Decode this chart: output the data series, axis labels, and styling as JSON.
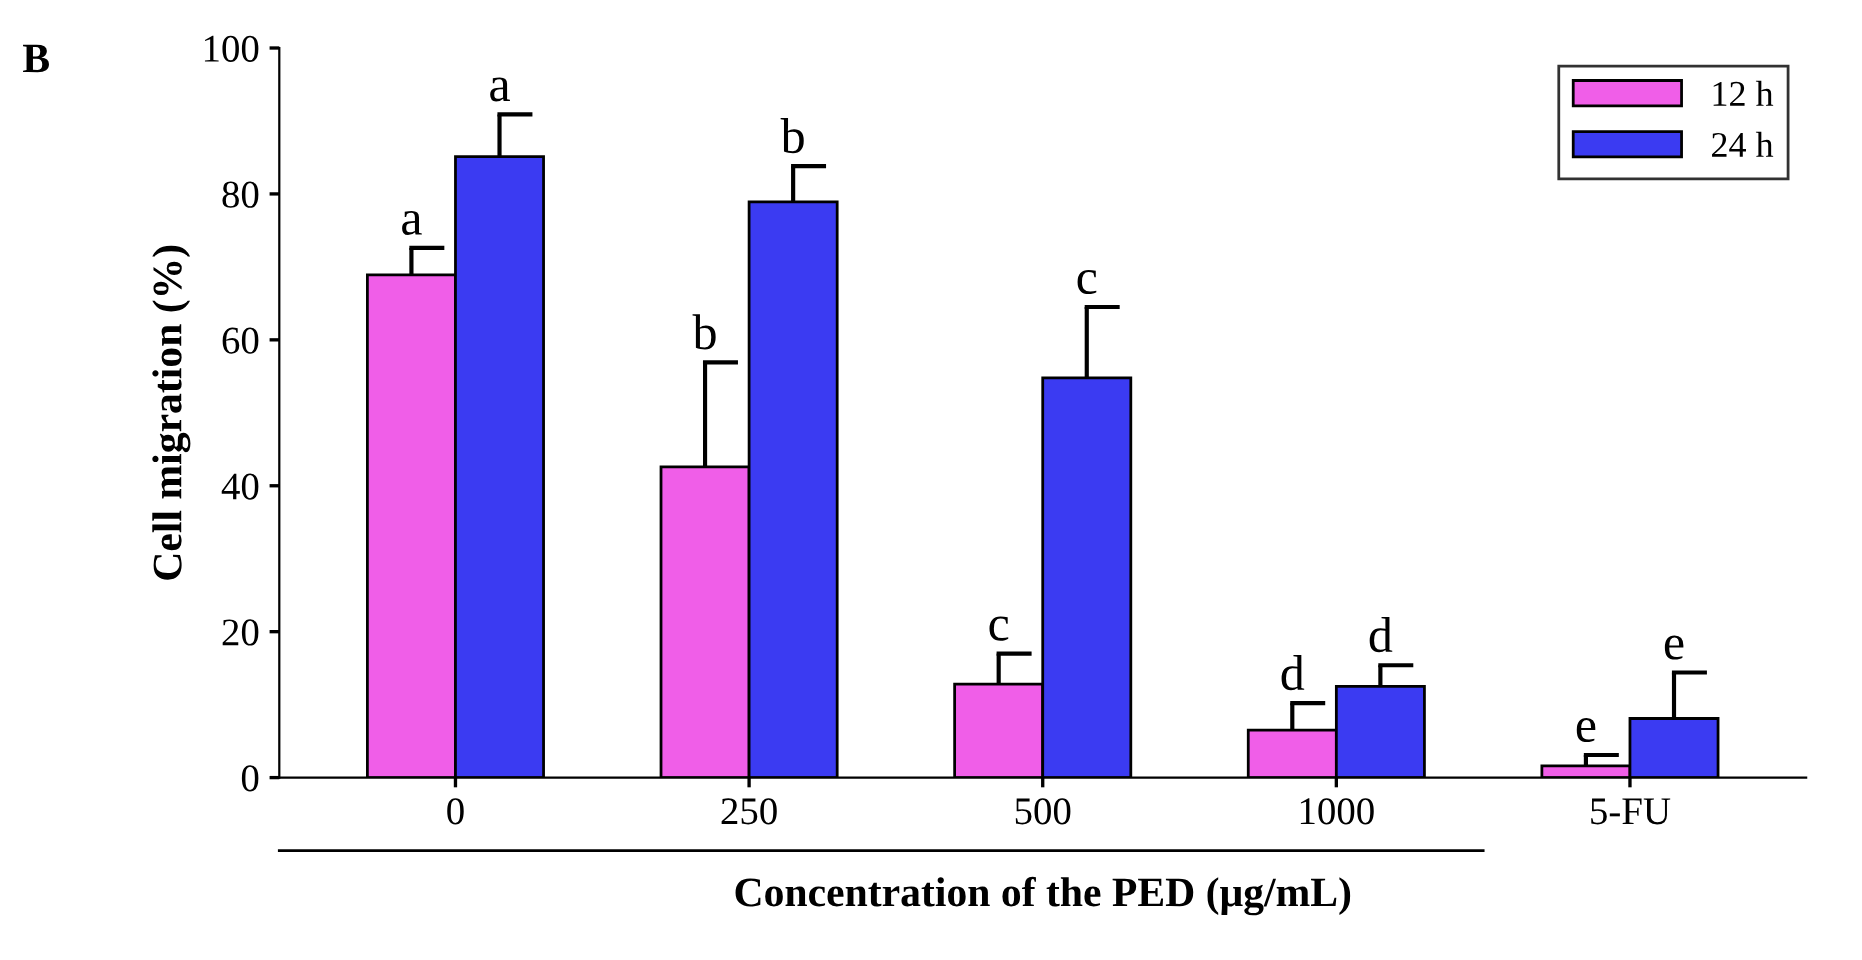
{
  "chart_data": {
    "type": "bar",
    "xlabel": "Concentration of the PED (μg/mL)",
    "ylabel": "Cell migration (%)",
    "categories": [
      "0",
      "250",
      "500",
      "1000",
      "5-FU"
    ],
    "series": [
      {
        "name": "12 h",
        "color": "#f05ee8",
        "values": [
          68.9,
          42.6,
          12.8,
          6.5,
          1.6
        ],
        "errors": [
          [
            68.9,
            72.6
          ],
          [
            42.6,
            56.9
          ],
          [
            12.8,
            17.0
          ],
          [
            6.5,
            10.2
          ],
          [
            1.6,
            3.1
          ]
        ]
      },
      {
        "name": "24 h",
        "color": "#3b3bf2",
        "values": [
          85.1,
          78.9,
          54.8,
          12.5,
          8.1
        ],
        "errors": [
          [
            85.1,
            90.9
          ],
          [
            78.9,
            83.8
          ],
          [
            54.8,
            64.5
          ],
          [
            12.5,
            15.4
          ],
          [
            8.1,
            14.4
          ]
        ]
      }
    ],
    "ylim": [
      0,
      100
    ],
    "yticks": [
      0,
      20,
      40,
      60,
      80,
      100
    ],
    "grid": false,
    "legend": "top right",
    "annotations": [
      "B",
      "a",
      "a",
      "b",
      "b",
      "c",
      "c",
      "d",
      "d",
      "e",
      "e"
    ]
  }
}
